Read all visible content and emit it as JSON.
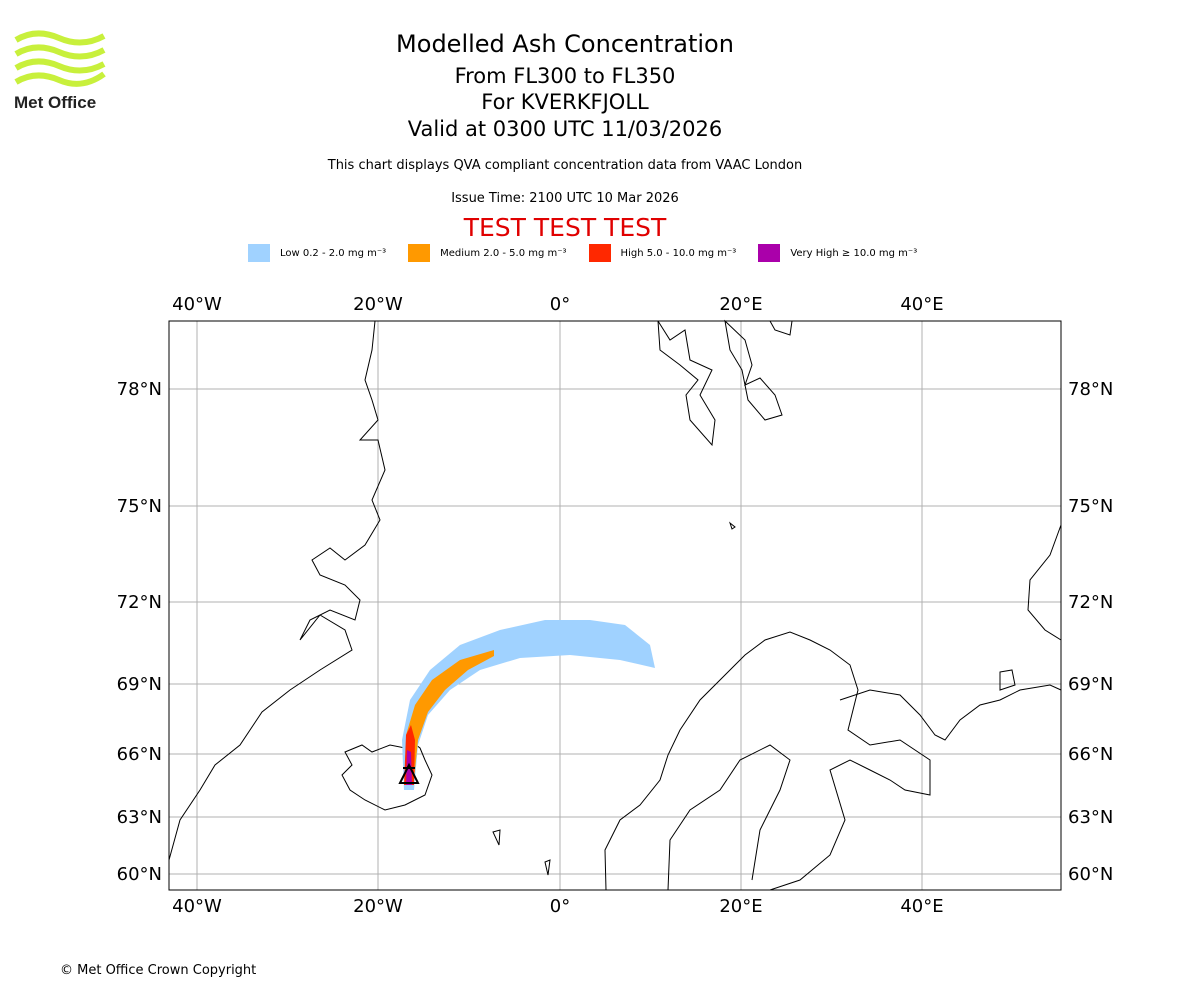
{
  "logo": {
    "text": "Met Office",
    "color": "#c8f03c"
  },
  "header": {
    "title": "Modelled Ash Concentration",
    "levels": "From FL300 to FL350",
    "volcano": "For KVERKFJOLL",
    "valid": "Valid at 0300 UTC 11/03/2026",
    "description": "This chart displays QVA compliant concentration data from VAAC London",
    "issue": "Issue Time: 2100 UTC 10 Mar 2026",
    "test": "TEST TEST TEST",
    "test_color": "#e00000"
  },
  "legend": [
    {
      "label": "Low 0.2 - 2.0 mg m⁻³",
      "color": "#a0d2ff"
    },
    {
      "label": "Medium 2.0 - 5.0 mg m⁻³",
      "color": "#ff9900"
    },
    {
      "label": "High 5.0 - 10.0 mg m⁻³",
      "color": "#ff2800"
    },
    {
      "label": "Very High ≥ 10.0 mg m⁻³",
      "color": "#aa00aa"
    }
  ],
  "chart_data": {
    "type": "map",
    "lon_ticks": [
      "40°W",
      "20°W",
      "0°",
      "20°E",
      "40°E"
    ],
    "lat_ticks": [
      "78°N",
      "75°N",
      "72°N",
      "69°N",
      "66°N",
      "63°N",
      "60°N"
    ],
    "grid": true,
    "volcano": {
      "name": "KVERKFJOLL",
      "lat": 64.65,
      "lon": -16.7
    }
  },
  "footer": {
    "copyright": "© Met Office Crown Copyright"
  }
}
